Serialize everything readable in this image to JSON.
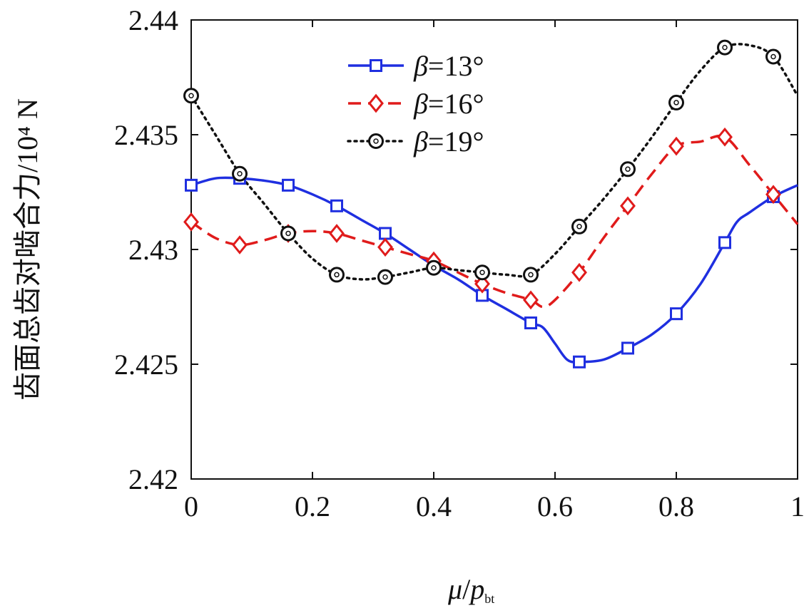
{
  "chart_data": {
    "type": "line",
    "ylabel": "齿面总齿对啮合力/10⁴ N",
    "xlabel": {
      "mu": "μ",
      "slash": "/",
      "p": "p",
      "sub": "bt"
    },
    "xlim": [
      0,
      1
    ],
    "ylim": [
      2.42,
      2.44
    ],
    "xticks": [
      0,
      0.2,
      0.4,
      0.6,
      0.8,
      1
    ],
    "xtick_labels": [
      "0",
      "0.2",
      "0.4",
      "0.6",
      "0.8",
      "1"
    ],
    "yticks": [
      2.42,
      2.425,
      2.43,
      2.435,
      2.44
    ],
    "ytick_labels": [
      "2.42",
      "2.425",
      "2.43",
      "2.435",
      "2.44"
    ],
    "grid": false,
    "legend_position": "top-left",
    "series": [
      {
        "name": "β=13°",
        "legend": {
          "sym": "β",
          "rest": "=13°"
        },
        "color": "#1f2fe0",
        "line": "solid",
        "marker": "square",
        "x": [
          0,
          0.08,
          0.16,
          0.24,
          0.32,
          0.4,
          0.48,
          0.56,
          0.64,
          0.72,
          0.8,
          0.88,
          0.96
        ],
        "y": [
          2.4328,
          2.4331,
          2.4328,
          2.4319,
          2.4307,
          2.4293,
          2.428,
          2.4268,
          2.4251,
          2.4257,
          2.4272,
          2.4303,
          2.4323
        ],
        "curve_x": [
          0,
          0.04,
          0.08,
          0.12,
          0.16,
          0.2,
          0.24,
          0.28,
          0.32,
          0.36,
          0.4,
          0.44,
          0.48,
          0.52,
          0.56,
          0.58,
          0.6,
          0.62,
          0.64,
          0.68,
          0.72,
          0.76,
          0.8,
          0.84,
          0.88,
          0.9,
          0.92,
          0.96,
          1.0
        ],
        "curve_y": [
          2.4328,
          2.4331,
          2.4331,
          2.433,
          2.4328,
          2.4324,
          2.4319,
          2.4313,
          2.4307,
          2.43,
          2.4293,
          2.4287,
          2.428,
          2.4274,
          2.4268,
          2.4266,
          2.4259,
          2.4252,
          2.4251,
          2.4252,
          2.4257,
          2.4263,
          2.4272,
          2.4285,
          2.4303,
          2.4312,
          2.4316,
          2.4323,
          2.4328
        ]
      },
      {
        "name": "β=16°",
        "legend": {
          "sym": "β",
          "rest": "=16°"
        },
        "color": "#e01b1b",
        "line": "dashed",
        "marker": "diamond",
        "x": [
          0,
          0.08,
          0.16,
          0.24,
          0.32,
          0.4,
          0.48,
          0.56,
          0.64,
          0.72,
          0.8,
          0.88,
          0.96
        ],
        "y": [
          2.4312,
          2.4302,
          2.4307,
          2.4307,
          2.4301,
          2.4295,
          2.4285,
          2.4278,
          2.429,
          2.4319,
          2.4345,
          2.4349,
          2.4324
        ],
        "curve_x": [
          0,
          0.04,
          0.08,
          0.12,
          0.16,
          0.2,
          0.24,
          0.28,
          0.32,
          0.36,
          0.4,
          0.44,
          0.48,
          0.52,
          0.56,
          0.58,
          0.6,
          0.64,
          0.68,
          0.72,
          0.76,
          0.8,
          0.84,
          0.88,
          0.92,
          0.96,
          1.0
        ],
        "curve_y": [
          2.4312,
          2.4305,
          2.4302,
          2.4304,
          2.4307,
          2.4308,
          2.4307,
          2.4304,
          2.4301,
          2.4298,
          2.4295,
          2.429,
          2.4285,
          2.4281,
          2.4278,
          2.4275,
          2.4278,
          2.429,
          2.4305,
          2.4319,
          2.4333,
          2.4345,
          2.4347,
          2.4349,
          2.4337,
          2.4324,
          2.4311
        ]
      },
      {
        "name": "β=19°",
        "legend": {
          "sym": "β",
          "rest": "=19°"
        },
        "color": "#111111",
        "line": "dotted",
        "marker": "circle",
        "x": [
          0,
          0.08,
          0.16,
          0.24,
          0.32,
          0.4,
          0.48,
          0.56,
          0.64,
          0.72,
          0.8,
          0.88,
          0.96
        ],
        "y": [
          2.4367,
          2.4333,
          2.4307,
          2.4289,
          2.4288,
          2.4292,
          2.429,
          2.4289,
          2.431,
          2.4335,
          2.4364,
          2.4388,
          2.4384
        ],
        "curve_x": [
          0,
          0.04,
          0.08,
          0.12,
          0.16,
          0.2,
          0.24,
          0.28,
          0.32,
          0.36,
          0.4,
          0.44,
          0.48,
          0.52,
          0.56,
          0.6,
          0.64,
          0.68,
          0.72,
          0.76,
          0.8,
          0.84,
          0.88,
          0.92,
          0.96,
          1.0
        ],
        "curve_y": [
          2.4367,
          2.435,
          2.4333,
          2.432,
          2.4307,
          2.4296,
          2.4289,
          2.4287,
          2.4288,
          2.429,
          2.4292,
          2.4291,
          2.429,
          2.4289,
          2.4289,
          2.4298,
          2.431,
          2.4322,
          2.4335,
          2.4349,
          2.4364,
          2.4378,
          2.4388,
          2.4389,
          2.4384,
          2.4367
        ]
      }
    ]
  }
}
